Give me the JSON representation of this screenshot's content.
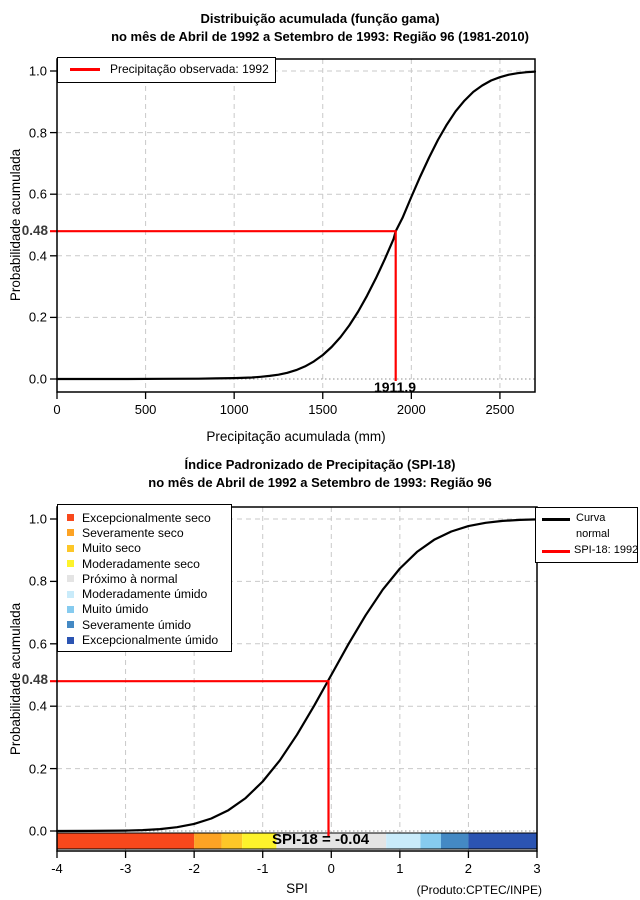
{
  "chart_data": [
    {
      "type": "line",
      "title": "Distribuição acumulada (função gama)",
      "subtitle": "no mês de Abril de 1992 a Setembro de 1993: Região 96 (1981-2010)",
      "xlabel": "Precipitação acumulada (mm)",
      "ylabel": "Probabilidade acumulada",
      "xlim": [
        0,
        2698
      ],
      "ylim": [
        0,
        1
      ],
      "grid": true,
      "x_tick_values": [
        0,
        500,
        1000,
        1500,
        2000,
        2500
      ],
      "x_tick_labels": [
        "0",
        "500",
        "1000",
        "1500",
        "2000",
        "2500"
      ],
      "y_tick_values": [
        0,
        0.2,
        0.4,
        0.6,
        0.8,
        1.0
      ],
      "y_tick_labels": [
        "0.0",
        "0.2",
        "0.4",
        "0.6",
        "0.8",
        "1.0"
      ],
      "legend": {
        "label": "Precipitação observada: 1992",
        "color": "#ff0000",
        "position": "top-left"
      },
      "annotation": {
        "x": 1911.9,
        "prob": 0.48,
        "x_label": "1911.9",
        "prob_label": "0.48",
        "color": "#ff0000"
      },
      "series": [
        {
          "points": [
            [
              0,
              0
            ],
            [
              200,
              0
            ],
            [
              400,
              0
            ],
            [
              600,
              0.0005
            ],
            [
              800,
              0.001
            ],
            [
              900,
              0.002
            ],
            [
              1000,
              0.003
            ],
            [
              1100,
              0.005
            ],
            [
              1150,
              0.007
            ],
            [
              1200,
              0.01
            ],
            [
              1250,
              0.014
            ],
            [
              1300,
              0.02
            ],
            [
              1350,
              0.029
            ],
            [
              1400,
              0.041
            ],
            [
              1450,
              0.057
            ],
            [
              1500,
              0.078
            ],
            [
              1550,
              0.104
            ],
            [
              1600,
              0.136
            ],
            [
              1650,
              0.174
            ],
            [
              1700,
              0.219
            ],
            [
              1750,
              0.27
            ],
            [
              1800,
              0.327
            ],
            [
              1850,
              0.389
            ],
            [
              1900,
              0.455
            ],
            [
              1911.9,
              0.48
            ],
            [
              1950,
              0.523
            ],
            [
              2000,
              0.591
            ],
            [
              2050,
              0.657
            ],
            [
              2100,
              0.719
            ],
            [
              2150,
              0.776
            ],
            [
              2200,
              0.826
            ],
            [
              2250,
              0.869
            ],
            [
              2300,
              0.904
            ],
            [
              2350,
              0.932
            ],
            [
              2400,
              0.953
            ],
            [
              2450,
              0.969
            ],
            [
              2500,
              0.98
            ],
            [
              2550,
              0.988
            ],
            [
              2600,
              0.993
            ],
            [
              2650,
              0.996
            ],
            [
              2698,
              0.998
            ]
          ]
        }
      ]
    },
    {
      "type": "line",
      "title": "Índice Padronizado de Precipitação (SPI-18)",
      "subtitle": "no mês de Abril de 1992 a Setembro de 1993: Região 96",
      "xlabel": "SPI",
      "ylabel": "Probabilidade acumulada",
      "xlim": [
        -4,
        3
      ],
      "ylim": [
        0,
        1
      ],
      "grid": true,
      "x_tick_values": [
        -4,
        -3,
        -2,
        -1,
        0,
        1,
        2,
        3
      ],
      "x_tick_labels": [
        "-4",
        "-3",
        "-2",
        "-1",
        "0",
        "1",
        "2",
        "3"
      ],
      "y_tick_values": [
        0,
        0.2,
        0.4,
        0.6,
        0.8,
        1.0
      ],
      "y_tick_labels": [
        "0.0",
        "0.2",
        "0.4",
        "0.6",
        "0.8",
        "1.0"
      ],
      "legend_right": [
        {
          "lines": [
            "Curva",
            "normal"
          ],
          "color": "#000000"
        },
        {
          "lines": [
            "SPI-18: 1992"
          ],
          "color": "#ff0000"
        }
      ],
      "categories": [
        {
          "label": "Excepcionalmente seco",
          "color": "#F8481C"
        },
        {
          "label": "Severamente seco",
          "color": "#FDA324"
        },
        {
          "label": "Muito seco",
          "color": "#FDC728"
        },
        {
          "label": "Moderadamente seco",
          "color": "#FDF32B"
        },
        {
          "label": "Próximo à normal",
          "color": "#E4E4E4"
        },
        {
          "label": "Moderadamente úmido",
          "color": "#C9EBFA"
        },
        {
          "label": "Muito úmido",
          "color": "#86CBEF"
        },
        {
          "label": "Severamente úmido",
          "color": "#4489C4"
        },
        {
          "label": "Excepcionalmente úmido",
          "color": "#2B54B2"
        }
      ],
      "colorbar": [
        {
          "from": -4,
          "to": -2,
          "color": "#F8481C"
        },
        {
          "from": -2,
          "to": -1.6,
          "color": "#FDA324"
        },
        {
          "from": -1.6,
          "to": -1.3,
          "color": "#FDC728"
        },
        {
          "from": -1.3,
          "to": -0.8,
          "color": "#FDF32B"
        },
        {
          "from": -0.8,
          "to": 0.8,
          "color": "#E4E4E4"
        },
        {
          "from": 0.8,
          "to": 1.3,
          "color": "#C9EBFA"
        },
        {
          "from": 1.3,
          "to": 1.6,
          "color": "#86CBEF"
        },
        {
          "from": 1.6,
          "to": 2,
          "color": "#4489C4"
        },
        {
          "from": 2,
          "to": 3,
          "color": "#2B54B2"
        }
      ],
      "annotation": {
        "x": -0.04,
        "prob": 0.48,
        "label": "SPI-18 = -0.04",
        "prob_label": "0.48",
        "color": "#ff0000"
      },
      "source_label": "(Produto:CPTEC/INPE)",
      "series": [
        {
          "points": [
            [
              -4,
              0.0
            ],
            [
              -3.5,
              0.0002
            ],
            [
              -3,
              0.0013
            ],
            [
              -2.75,
              0.003
            ],
            [
              -2.5,
              0.0062
            ],
            [
              -2.25,
              0.0122
            ],
            [
              -2,
              0.0228
            ],
            [
              -1.75,
              0.0401
            ],
            [
              -1.5,
              0.0668
            ],
            [
              -1.25,
              0.1056
            ],
            [
              -1,
              0.1587
            ],
            [
              -0.75,
              0.2266
            ],
            [
              -0.5,
              0.3085
            ],
            [
              -0.25,
              0.4013
            ],
            [
              -0.04,
              0.484
            ],
            [
              0,
              0.5
            ],
            [
              0.25,
              0.5987
            ],
            [
              0.5,
              0.6915
            ],
            [
              0.75,
              0.7734
            ],
            [
              1,
              0.8413
            ],
            [
              1.25,
              0.8944
            ],
            [
              1.5,
              0.9332
            ],
            [
              1.75,
              0.9599
            ],
            [
              2,
              0.9772
            ],
            [
              2.25,
              0.9878
            ],
            [
              2.5,
              0.9938
            ],
            [
              2.75,
              0.997
            ],
            [
              3,
              0.9987
            ]
          ]
        }
      ]
    }
  ]
}
